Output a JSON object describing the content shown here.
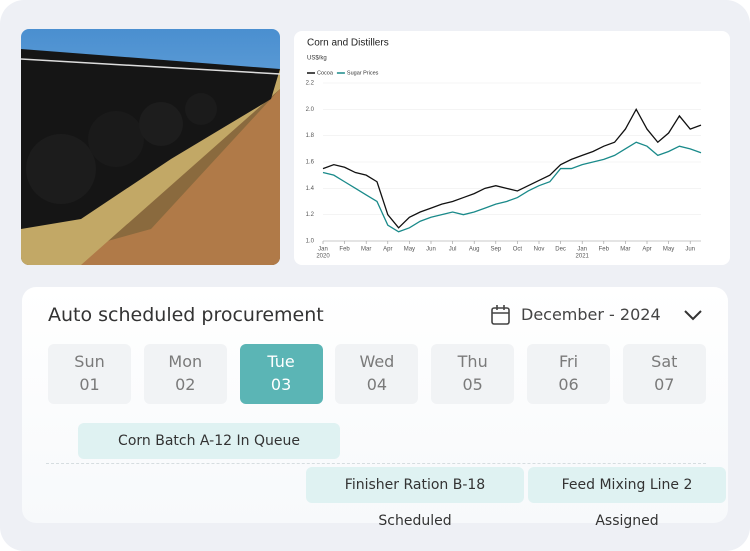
{
  "chart_data": {
    "type": "line",
    "title": "Corn and Distillers",
    "y_label": "US$/kg",
    "x": [
      0,
      0.5,
      1,
      1.5,
      2,
      2.5,
      3,
      3.5,
      4,
      4.5,
      5,
      5.5,
      6,
      6.5,
      7,
      7.5,
      8,
      8.5,
      9,
      9.5,
      10,
      10.5,
      11,
      11.5,
      12,
      12.5,
      13,
      13.5,
      14,
      14.5,
      15,
      15.5,
      16,
      16.5,
      17,
      17.5
    ],
    "series": [
      {
        "name": "Cocoa",
        "color": "#111111",
        "values": [
          1.55,
          1.58,
          1.56,
          1.52,
          1.5,
          1.45,
          1.2,
          1.1,
          1.18,
          1.22,
          1.25,
          1.28,
          1.3,
          1.33,
          1.36,
          1.4,
          1.42,
          1.4,
          1.38,
          1.42,
          1.46,
          1.5,
          1.58,
          1.62,
          1.65,
          1.68,
          1.72,
          1.75,
          1.85,
          2.0,
          1.85,
          1.75,
          1.82,
          1.95,
          1.85,
          1.88
        ]
      },
      {
        "name": "Sugar Prices",
        "color": "#1a8a8a",
        "values": [
          1.52,
          1.5,
          1.45,
          1.4,
          1.35,
          1.3,
          1.12,
          1.07,
          1.1,
          1.15,
          1.18,
          1.2,
          1.22,
          1.2,
          1.22,
          1.25,
          1.28,
          1.3,
          1.33,
          1.38,
          1.42,
          1.45,
          1.55,
          1.55,
          1.58,
          1.6,
          1.62,
          1.65,
          1.7,
          1.75,
          1.72,
          1.65,
          1.68,
          1.72,
          1.7,
          1.67
        ]
      }
    ],
    "xlim": [
      0,
      17.5
    ],
    "xticks": [
      {
        "value": 0,
        "label": "Jan"
      },
      {
        "value": 1,
        "label": "Feb"
      },
      {
        "value": 2,
        "label": "Mar"
      },
      {
        "value": 3,
        "label": "Apr"
      },
      {
        "value": 4,
        "label": "May"
      },
      {
        "value": 5,
        "label": "Jun"
      },
      {
        "value": 6,
        "label": "Jul"
      },
      {
        "value": 7,
        "label": "Aug"
      },
      {
        "value": 8,
        "label": "Sep"
      },
      {
        "value": 9,
        "label": "Oct"
      },
      {
        "value": 10,
        "label": "Nov"
      },
      {
        "value": 11,
        "label": "Dec"
      },
      {
        "value": 12,
        "label": "Jan"
      },
      {
        "value": 13,
        "label": "Feb"
      },
      {
        "value": 14,
        "label": "Mar"
      },
      {
        "value": 15,
        "label": "Apr"
      },
      {
        "value": 16,
        "label": "May"
      },
      {
        "value": 17,
        "label": "Jun"
      }
    ],
    "x_year_labels": [
      {
        "value": 0,
        "label": "2020"
      },
      {
        "value": 12,
        "label": "2021"
      }
    ],
    "ylim": [
      1.0,
      2.2
    ],
    "yticks": [
      {
        "value": 1.0,
        "label": "1.0"
      },
      1.2,
      1.4,
      1.6,
      1.8,
      {
        "value": 2.0,
        "label": "2.0"
      },
      2.2
    ],
    "legend": "top-left"
  },
  "scheduler": {
    "title": "Auto scheduled procurement",
    "month": "December - 2024",
    "days": [
      {
        "name": "Sun",
        "date": "01"
      },
      {
        "name": "Mon",
        "date": "02"
      },
      {
        "name": "Tue",
        "date": "03",
        "selected": true
      },
      {
        "name": "Wed",
        "date": "04"
      },
      {
        "name": "Thu",
        "date": "05"
      },
      {
        "name": "Fri",
        "date": "06"
      },
      {
        "name": "Sat",
        "date": "07"
      }
    ],
    "events": [
      "Corn Batch A-12 In Queue",
      "Finisher Ration B-18 Scheduled",
      "Feed Mixing Line 2 Assigned"
    ]
  }
}
